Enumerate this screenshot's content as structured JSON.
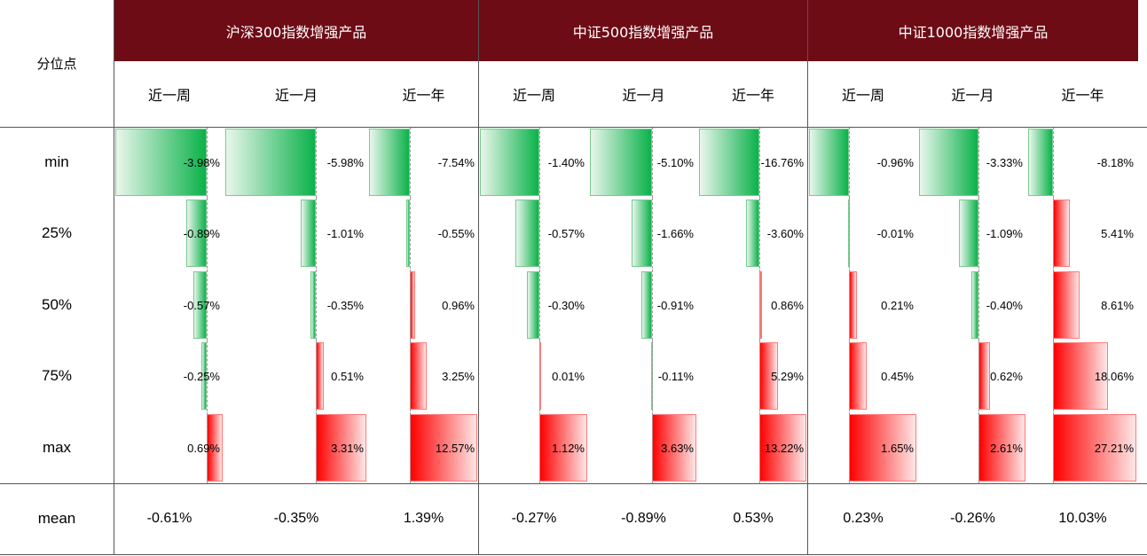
{
  "row_header": "分位点",
  "groups": [
    "沪深300指数增强产品",
    "中证500指数增强产品",
    "中证1000指数增强产品"
  ],
  "periods": [
    "近一周",
    "近一月",
    "近一年"
  ],
  "rows": [
    "min",
    "25%",
    "50%",
    "75%",
    "max"
  ],
  "mean_label": "mean",
  "colors": {
    "header_bg": "#6e0c16",
    "negative": "#0bb24a",
    "positive": "#ff0000"
  },
  "chart_data": {
    "type": "table",
    "columns": [
      {
        "group": "沪深300指数增强产品",
        "period": "近一周",
        "values": [
          -3.98,
          -0.89,
          -0.57,
          -0.25,
          0.69
        ],
        "labels": [
          "-3.98%",
          "-0.89%",
          "-0.57%",
          "-0.25%",
          "0.69%"
        ],
        "mean": "-0.61%"
      },
      {
        "group": "沪深300指数增强产品",
        "period": "近一月",
        "values": [
          -5.98,
          -1.01,
          -0.35,
          0.51,
          3.31
        ],
        "labels": [
          "-5.98%",
          "-1.01%",
          "-0.35%",
          "0.51%",
          "3.31%"
        ],
        "mean": "-0.35%"
      },
      {
        "group": "沪深300指数增强产品",
        "period": "近一年",
        "values": [
          -7.54,
          -0.55,
          0.96,
          3.25,
          12.57
        ],
        "labels": [
          "-7.54%",
          "-0.55%",
          "0.96%",
          "3.25%",
          "12.57%"
        ],
        "mean": "1.39%"
      },
      {
        "group": "中证500指数增强产品",
        "period": "近一周",
        "values": [
          -1.4,
          -0.57,
          -0.3,
          0.01,
          1.12
        ],
        "labels": [
          "-1.40%",
          "-0.57%",
          "-0.30%",
          "0.01%",
          "1.12%"
        ],
        "mean": "-0.27%"
      },
      {
        "group": "中证500指数增强产品",
        "period": "近一月",
        "values": [
          -5.1,
          -1.66,
          -0.91,
          -0.11,
          3.63
        ],
        "labels": [
          "-5.10%",
          "-1.66%",
          "-0.91%",
          "-0.11%",
          "3.63%"
        ],
        "mean": "-0.89%"
      },
      {
        "group": "中证500指数增强产品",
        "period": "近一年",
        "values": [
          -16.76,
          -3.6,
          0.86,
          5.29,
          13.22
        ],
        "labels": [
          "-16.76%",
          "-3.60%",
          "0.86%",
          "5.29%",
          "13.22%"
        ],
        "mean": "0.53%"
      },
      {
        "group": "中证1000指数增强产品",
        "period": "近一周",
        "values": [
          -0.96,
          -0.01,
          0.21,
          0.45,
          1.65
        ],
        "labels": [
          "-0.96%",
          "-0.01%",
          "0.21%",
          "0.45%",
          "1.65%"
        ],
        "mean": "0.23%"
      },
      {
        "group": "中证1000指数增强产品",
        "period": "近一月",
        "values": [
          -3.33,
          -1.09,
          -0.4,
          0.62,
          2.61
        ],
        "labels": [
          "-3.33%",
          "-1.09%",
          "-0.40%",
          "0.62%",
          "2.61%"
        ],
        "mean": "-0.26%"
      },
      {
        "group": "中证1000指数增强产品",
        "period": "近一年",
        "values": [
          -8.18,
          5.41,
          8.61,
          18.06,
          27.21
        ],
        "labels": [
          "-8.18%",
          "5.41%",
          "8.61%",
          "18.06%",
          "27.21%"
        ],
        "mean": "10.03%"
      }
    ]
  }
}
